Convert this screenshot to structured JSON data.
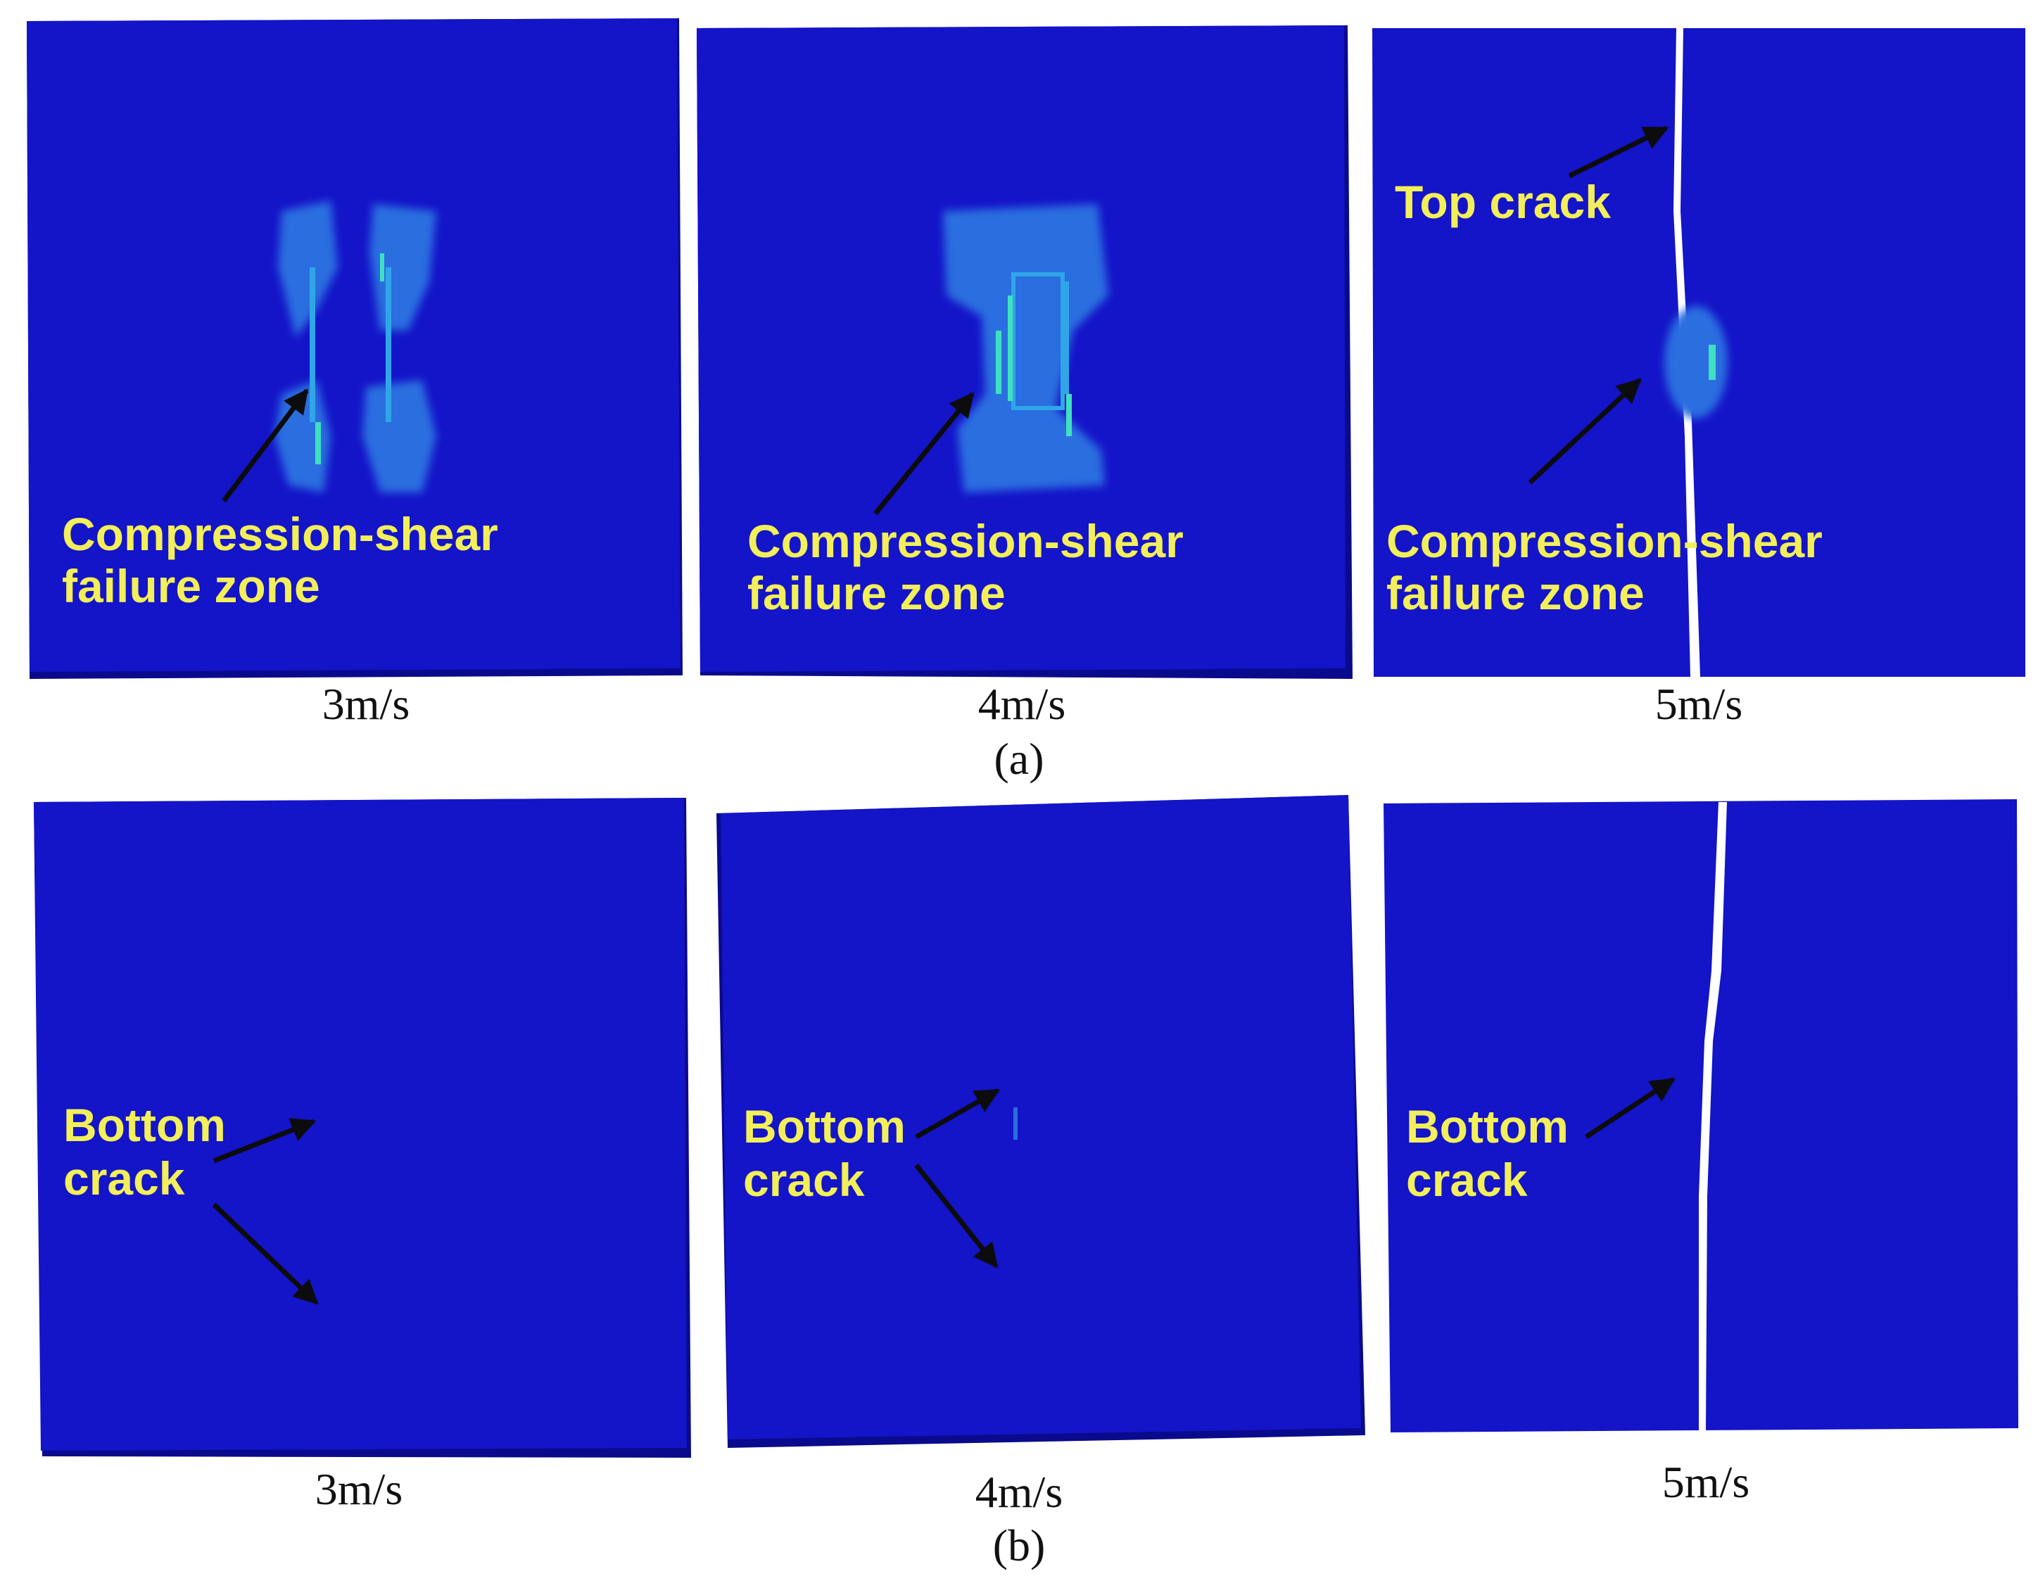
{
  "panel_a": {
    "caption": "(a)",
    "items": [
      {
        "speed": "3m/s",
        "label_line1": "Compression-shear",
        "label_line2": "failure zone"
      },
      {
        "speed": "4m/s",
        "label_line1": "Compression-shear",
        "label_line2": "failure zone"
      },
      {
        "speed": "5m/s",
        "label_line1": "Compression-shear",
        "label_line2": "failure zone",
        "top_label": "Top crack"
      }
    ]
  },
  "panel_b": {
    "caption": "(b)",
    "items": [
      {
        "speed": "3m/s",
        "label_line1": "Bottom",
        "label_line2": "crack"
      },
      {
        "speed": "4m/s",
        "label_line1": "Bottom",
        "label_line2": "crack"
      },
      {
        "speed": "5m/s",
        "label_line1": "Bottom",
        "label_line2": "crack"
      }
    ]
  },
  "colors": {
    "slab_face": "#1414c8",
    "slab_edge": "#0a0a8c",
    "damage_light": "#2a6ee0",
    "damage_mid": "#30a6e8",
    "damage_high": "#3fe0c0",
    "crack": "#ffffff",
    "label_text": "#f2ef5a",
    "arrow": "#0c0c0c"
  }
}
